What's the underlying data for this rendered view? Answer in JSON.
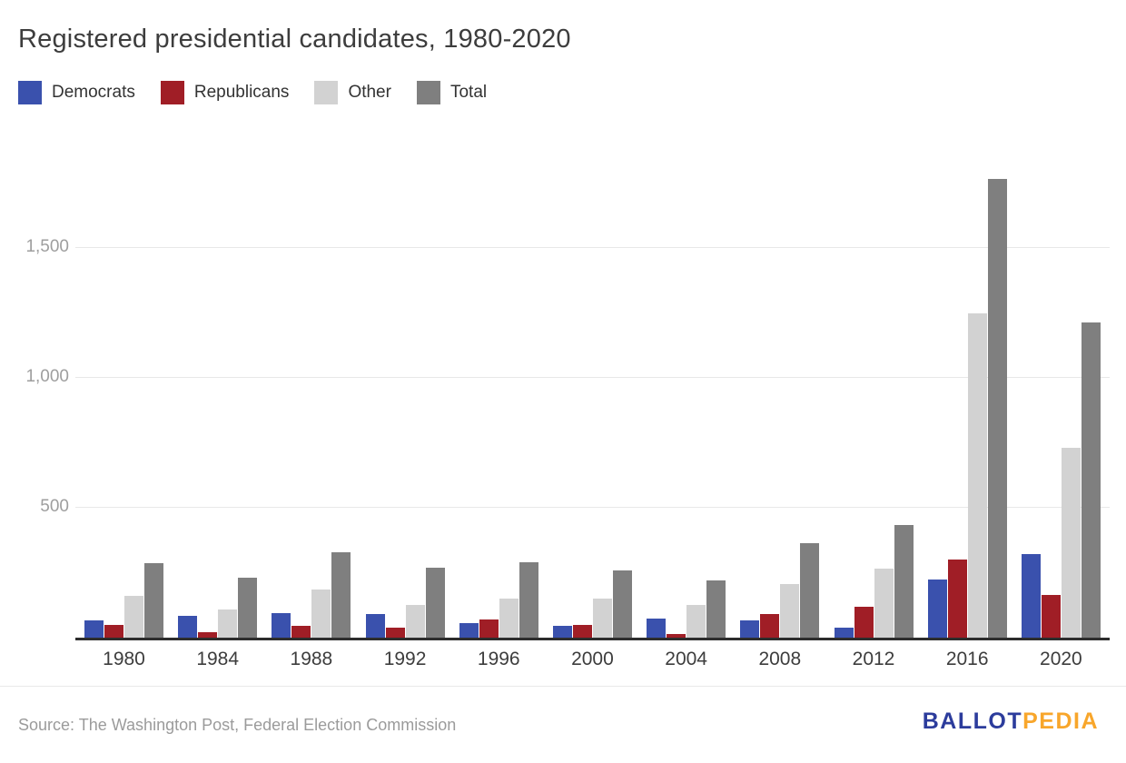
{
  "title": "Registered presidential candidates, 1980-2020",
  "legend": {
    "items": [
      {
        "label": "Democrats",
        "color": "#3a51ad"
      },
      {
        "label": "Republicans",
        "color": "#a01e26"
      },
      {
        "label": "Other",
        "color": "#d2d2d2"
      },
      {
        "label": "Total",
        "color": "#7f7f7f"
      }
    ]
  },
  "chart_data": {
    "type": "bar",
    "title": "Registered presidential candidates, 1980-2020",
    "categories": [
      "1980",
      "1984",
      "1988",
      "1992",
      "1996",
      "2000",
      "2004",
      "2008",
      "2012",
      "2016",
      "2020"
    ],
    "series": [
      {
        "name": "Democrats",
        "color": "#3a51ad",
        "values": [
          65,
          85,
          95,
          90,
          55,
          45,
          75,
          65,
          40,
          225,
          320
        ]
      },
      {
        "name": "Republicans",
        "color": "#a01e26",
        "values": [
          50,
          20,
          45,
          40,
          70,
          50,
          15,
          90,
          120,
          300,
          165
        ]
      },
      {
        "name": "Other",
        "color": "#d2d2d2",
        "values": [
          160,
          110,
          185,
          125,
          150,
          150,
          125,
          205,
          265,
          1250,
          730
        ]
      },
      {
        "name": "Total",
        "color": "#7f7f7f",
        "values": [
          285,
          230,
          330,
          270,
          290,
          260,
          220,
          365,
          435,
          1765,
          1215
        ]
      }
    ],
    "xlabel": "",
    "ylabel": "",
    "ylim": [
      0,
      1820
    ],
    "y_ticks": [
      {
        "value": 500,
        "label": "500"
      },
      {
        "value": 1000,
        "label": "1,000"
      },
      {
        "value": 1500,
        "label": "1,500"
      }
    ],
    "grid": true,
    "legend_position": "top-left",
    "axis_color": "#2d2d2d",
    "gridline_color": "#e8e8e8"
  },
  "footer": {
    "source": "Source: The Washington Post, Federal Election Commission",
    "logo_part1": "BALLOT",
    "logo_part2": "PEDIA"
  }
}
